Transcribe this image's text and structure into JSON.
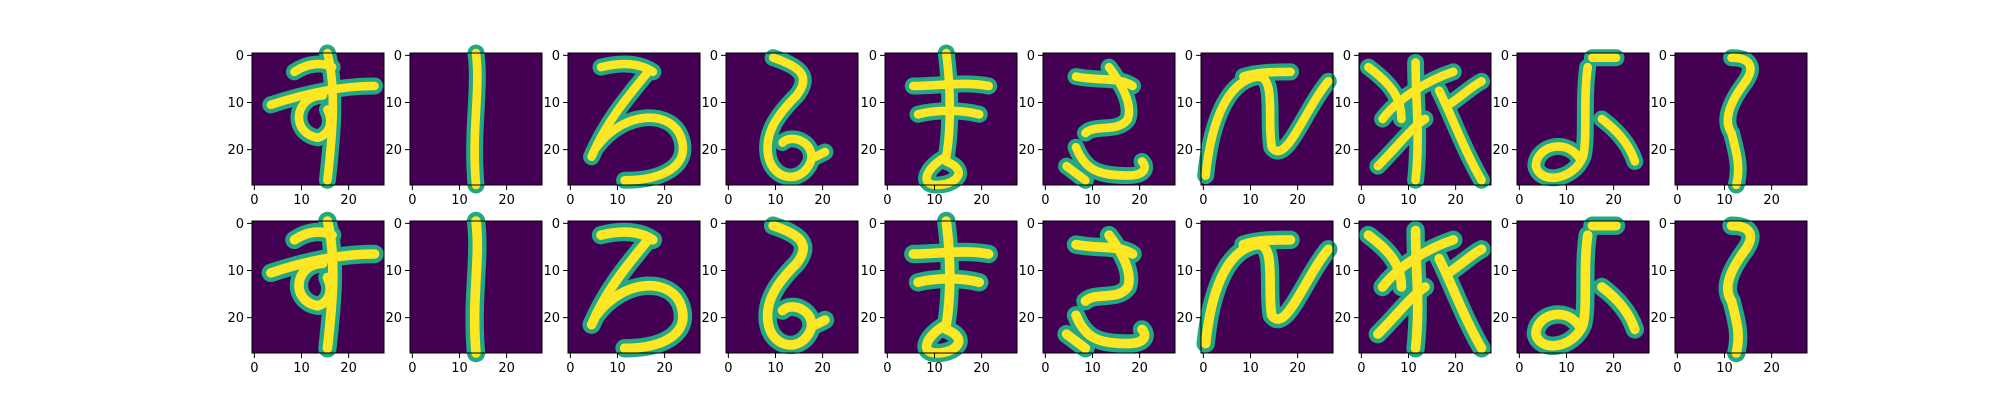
{
  "chart_data": {
    "type": "image_grid",
    "rows": 2,
    "columns": 10,
    "image_size": [
      28,
      28
    ],
    "colormap": "viridis",
    "background_color": "#440154",
    "stroke_color": "#fde725",
    "x_ticks": [
      0,
      10,
      20
    ],
    "y_ticks": [
      0,
      10,
      20
    ],
    "x_tick_labels": [
      "0",
      "10",
      "20"
    ],
    "y_tick_labels": [
      "0",
      "10",
      "20"
    ],
    "panels": [
      {
        "glyph": "す"
      },
      {
        "glyph": "|"
      },
      {
        "glyph": "ろ"
      },
      {
        "glyph": "ら"
      },
      {
        "glyph": "ま"
      },
      {
        "glyph": "さ"
      },
      {
        "glyph": "へ"
      },
      {
        "glyph": "秋"
      },
      {
        "glyph": "み"
      },
      {
        "glyph": "え"
      }
    ]
  }
}
